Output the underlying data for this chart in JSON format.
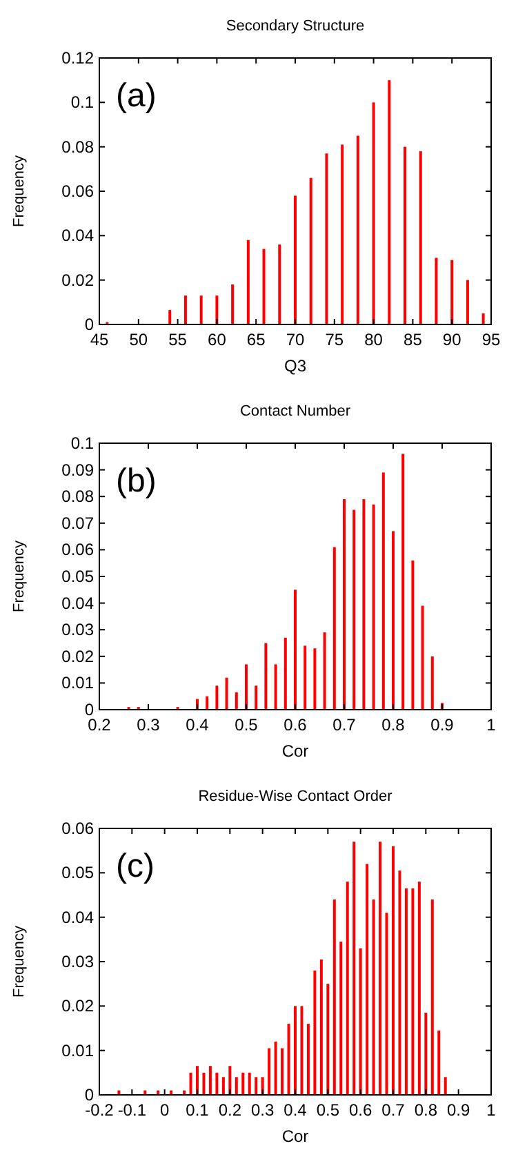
{
  "chart_data": [
    {
      "type": "bar",
      "title": "Secondary Structure",
      "xlabel": "Q3",
      "ylabel": "Frequency",
      "annotations": [
        "(a)"
      ],
      "color": "#ff0000",
      "x": [
        46,
        54,
        56,
        58,
        60,
        62,
        64,
        66,
        68,
        70,
        72,
        74,
        76,
        78,
        80,
        82,
        84,
        86,
        88,
        90,
        92,
        94
      ],
      "values": [
        0.001,
        0.0065,
        0.013,
        0.013,
        0.013,
        0.018,
        0.038,
        0.034,
        0.036,
        0.058,
        0.066,
        0.077,
        0.081,
        0.085,
        0.1,
        0.11,
        0.08,
        0.078,
        0.03,
        0.029,
        0.02,
        0.005
      ],
      "xlim": [
        45,
        95
      ],
      "xticks": [
        45,
        50,
        55,
        60,
        65,
        70,
        75,
        80,
        85,
        90,
        95
      ],
      "ylim": [
        0,
        0.12
      ],
      "yticks": [
        0,
        0.02,
        0.04,
        0.06,
        0.08,
        0.1,
        0.12
      ],
      "grid": false
    },
    {
      "type": "bar",
      "title": "Contact Number",
      "xlabel": "Cor",
      "ylabel": "Frequency",
      "annotations": [
        "(b)"
      ],
      "color": "#ff0000",
      "x": [
        0.26,
        0.28,
        0.36,
        0.4,
        0.42,
        0.44,
        0.46,
        0.48,
        0.5,
        0.52,
        0.54,
        0.56,
        0.58,
        0.6,
        0.62,
        0.64,
        0.66,
        0.68,
        0.7,
        0.72,
        0.74,
        0.76,
        0.78,
        0.8,
        0.82,
        0.84,
        0.86,
        0.88,
        0.9
      ],
      "values": [
        0.001,
        0.001,
        0.001,
        0.004,
        0.005,
        0.009,
        0.012,
        0.0065,
        0.017,
        0.009,
        0.025,
        0.017,
        0.027,
        0.045,
        0.024,
        0.023,
        0.029,
        0.061,
        0.079,
        0.075,
        0.079,
        0.077,
        0.089,
        0.067,
        0.096,
        0.056,
        0.039,
        0.02,
        0.0025
      ],
      "xlim": [
        0.2,
        1
      ],
      "xticks": [
        0.2,
        0.3,
        0.4,
        0.5,
        0.6,
        0.7,
        0.8,
        0.9,
        1
      ],
      "ylim": [
        0,
        0.1
      ],
      "yticks": [
        0,
        0.01,
        0.02,
        0.03,
        0.04,
        0.05,
        0.06,
        0.07,
        0.08,
        0.09,
        0.1
      ],
      "grid": false
    },
    {
      "type": "bar",
      "title": "Residue-Wise Contact Order",
      "xlabel": "Cor",
      "ylabel": "Frequency",
      "annotations": [
        "(c)"
      ],
      "color": "#ff0000",
      "x": [
        -0.14,
        -0.06,
        -0.02,
        0.02,
        0.06,
        0.08,
        0.1,
        0.12,
        0.14,
        0.16,
        0.18,
        0.2,
        0.22,
        0.24,
        0.26,
        0.28,
        0.3,
        0.32,
        0.34,
        0.36,
        0.38,
        0.4,
        0.42,
        0.44,
        0.46,
        0.48,
        0.5,
        0.52,
        0.54,
        0.56,
        0.58,
        0.6,
        0.62,
        0.64,
        0.66,
        0.68,
        0.7,
        0.72,
        0.74,
        0.76,
        0.78,
        0.8,
        0.82,
        0.84,
        0.86
      ],
      "values": [
        0.001,
        0.001,
        0.001,
        0.001,
        0.001,
        0.005,
        0.0065,
        0.005,
        0.0065,
        0.005,
        0.004,
        0.0065,
        0.004,
        0.005,
        0.005,
        0.004,
        0.004,
        0.0105,
        0.012,
        0.0105,
        0.016,
        0.02,
        0.02,
        0.016,
        0.028,
        0.0305,
        0.025,
        0.044,
        0.0345,
        0.048,
        0.057,
        0.033,
        0.052,
        0.044,
        0.057,
        0.041,
        0.056,
        0.0505,
        0.0465,
        0.0465,
        0.048,
        0.0185,
        0.044,
        0.0145,
        0.004
      ],
      "xlim": [
        -0.2,
        1
      ],
      "xticks": [
        -0.2,
        -0.1,
        0,
        0.1,
        0.2,
        0.3,
        0.4,
        0.5,
        0.6,
        0.7,
        0.8,
        0.9,
        1
      ],
      "ylim": [
        0,
        0.06
      ],
      "yticks": [
        0,
        0.01,
        0.02,
        0.03,
        0.04,
        0.05,
        0.06
      ],
      "grid": false
    }
  ]
}
